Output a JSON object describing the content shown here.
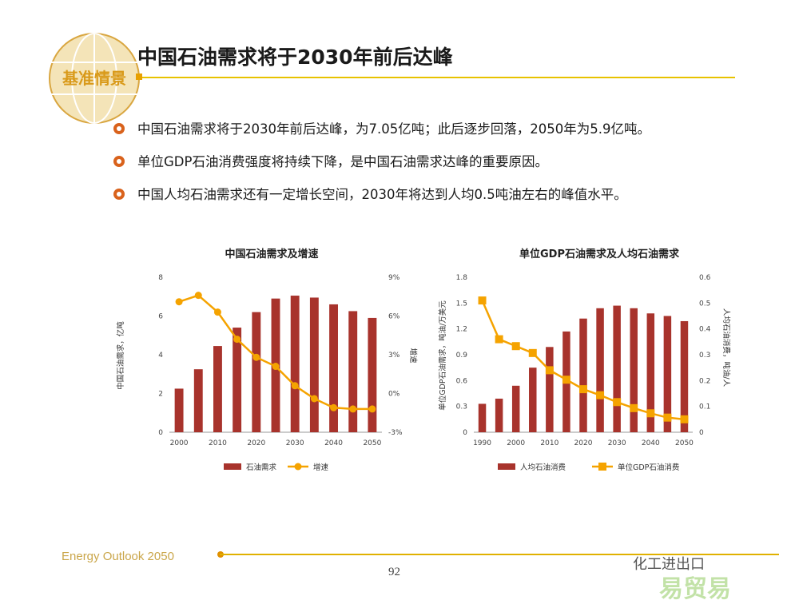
{
  "badge": {
    "text": "基准情景"
  },
  "header": {
    "title": "中国石油需求将于2030年前后达峰"
  },
  "bullets": [
    "中国石油需求将于2030年前后达峰，为7.05亿吨；此后逐步回落，2050年为5.9亿吨。",
    "单位GDP石油消费强度将持续下降，是中国石油需求达峰的重要原因。",
    "中国人均石油需求还有一定增长空间，2030年将达到人均0.5吨油左右的峰值水平。"
  ],
  "footer": {
    "left": "Energy Outlook 2050",
    "page": "92",
    "watermark": "化工进出口",
    "watermark2": "易贸易"
  },
  "colors": {
    "bar": "#a8332c",
    "line": "#f5a300",
    "rule": "#e8c200",
    "bullet": "#d9621c"
  },
  "chart_data": [
    {
      "type": "bar",
      "title": "中国石油需求及增速",
      "ylabel": "中国石油需求，亿吨",
      "y2label": "增速",
      "categories": [
        "2000",
        "2005",
        "2010",
        "2015",
        "2020",
        "2025",
        "2030",
        "2035",
        "2040",
        "2045",
        "2050"
      ],
      "x_ticks": [
        "2000",
        "2010",
        "2020",
        "2030",
        "2040",
        "2050"
      ],
      "ylim": [
        0,
        8
      ],
      "y_ticks": [
        "0",
        "2",
        "4",
        "6",
        "8"
      ],
      "y2lim": [
        -3,
        9
      ],
      "y2_ticks": [
        "-3%",
        "0%",
        "3%",
        "6%",
        "9%"
      ],
      "series": [
        {
          "name": "石油需求",
          "type": "bar",
          "axis": "left",
          "values": [
            2.25,
            3.25,
            4.45,
            5.4,
            6.2,
            6.9,
            7.05,
            6.95,
            6.6,
            6.25,
            5.9
          ]
        },
        {
          "name": "增速",
          "type": "line",
          "axis": "right",
          "values": [
            7.1,
            7.6,
            6.3,
            4.2,
            2.8,
            2.1,
            0.6,
            -0.4,
            -1.1,
            -1.2,
            -1.2
          ]
        }
      ],
      "legend": "bottom"
    },
    {
      "type": "bar",
      "title": "单位GDP石油需求及人均石油需求",
      "ylabel": "单位GDP石油需求，吨油/万美元",
      "y2label": "人均石油消费，吨油/人",
      "categories": [
        "1990",
        "1995",
        "2000",
        "2005",
        "2010",
        "2015",
        "2020",
        "2025",
        "2030",
        "2035",
        "2040",
        "2045",
        "2050"
      ],
      "x_ticks": [
        "1990",
        "2000",
        "2010",
        "2020",
        "2030",
        "2040",
        "2050"
      ],
      "ylim": [
        0,
        1.8
      ],
      "y_ticks": [
        "0",
        "0.3",
        "0.6",
        "0.9",
        "1.2",
        "1.5",
        "1.8"
      ],
      "y2lim": [
        0,
        0.6
      ],
      "y2_ticks": [
        "0",
        "0.1",
        "0.2",
        "0.3",
        "0.4",
        "0.5",
        "0.6"
      ],
      "series": [
        {
          "name": "人均石油消费",
          "type": "bar",
          "axis": "right",
          "values": [
            0.11,
            0.13,
            0.18,
            0.25,
            0.33,
            0.39,
            0.44,
            0.48,
            0.49,
            0.48,
            0.46,
            0.45,
            0.43
          ]
        },
        {
          "name": "单位GDP石油消费",
          "type": "line",
          "axis": "left",
          "values": [
            1.53,
            1.08,
            1.0,
            0.92,
            0.72,
            0.61,
            0.5,
            0.43,
            0.35,
            0.28,
            0.22,
            0.17,
            0.15
          ]
        }
      ],
      "legend": "bottom"
    }
  ]
}
